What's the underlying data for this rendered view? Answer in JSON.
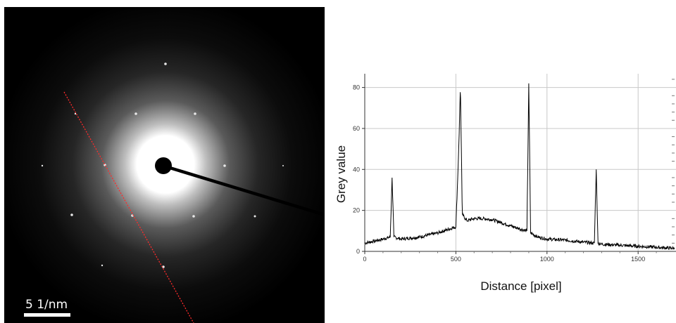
{
  "image": {
    "scale_bar_label": "5 1/nm"
  },
  "colors": {
    "profile_line": "#ff2a2a",
    "plot_line": "#000000",
    "grid": "#c8c8c8"
  },
  "chart_data": {
    "type": "line",
    "xlabel": "Distance [pixel]",
    "ylabel": "Grey value",
    "xlim": [
      0,
      1700
    ],
    "ylim": [
      0,
      85
    ],
    "x_ticks": [
      "0",
      "500",
      "1000",
      "1500"
    ],
    "y_ticks": [
      "0",
      "20",
      "40",
      "60",
      "80"
    ],
    "grid": true,
    "series": [
      {
        "x": [
          0,
          50,
          100,
          140,
          150,
          160,
          200,
          300,
          400,
          500,
          515,
          525,
          535,
          560,
          600,
          650,
          700,
          750,
          800,
          850,
          890,
          900,
          910,
          950,
          1000,
          1100,
          1200,
          1260,
          1270,
          1280,
          1300,
          1400,
          1500,
          1600,
          1700
        ],
        "values": [
          4,
          5,
          6,
          7,
          36,
          7,
          6,
          7,
          9,
          12,
          48,
          81,
          18,
          15,
          16,
          16,
          15.5,
          14,
          12.5,
          11,
          10,
          82,
          9,
          7,
          6,
          5.5,
          4.5,
          4,
          40,
          4,
          3.5,
          3,
          2.5,
          2,
          1.5
        ]
      }
    ]
  }
}
